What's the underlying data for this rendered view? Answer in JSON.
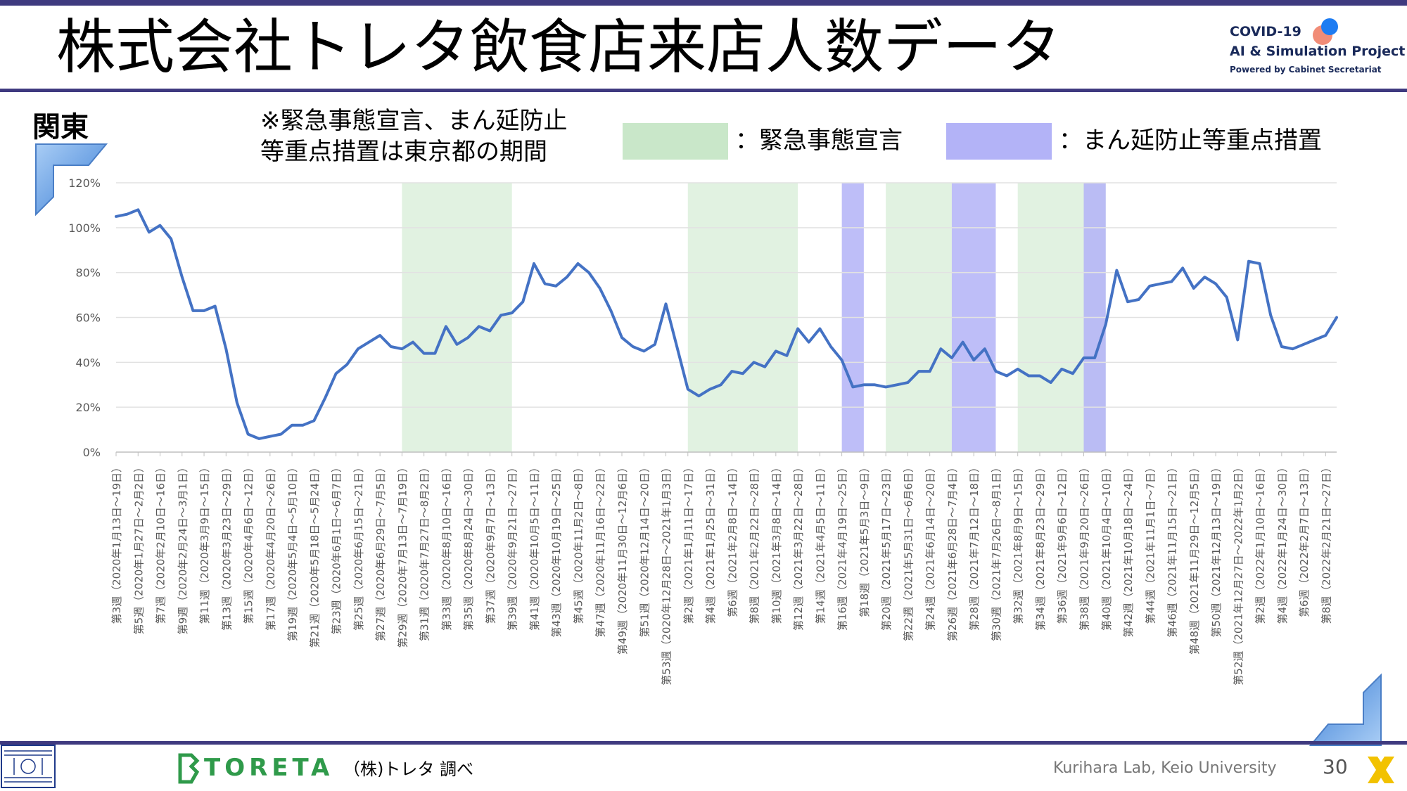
{
  "title": "株式会社トレタ飲食店来店人数データ",
  "logo": {
    "line1": "COVID-19",
    "line2": "AI & Simulation Project",
    "line3": "Powered by Cabinet Secretariat"
  },
  "region": "関東",
  "note_line1": "※緊急事態宣言、まん延防止",
  "note_line2": "等重点措置は東京都の期間",
  "legend": {
    "emergency_label": "：緊急事態宣言",
    "emergency_color": "#c9e7c9",
    "priority_label": "：まん延防止等重点措置",
    "priority_color": "#b3b3f7"
  },
  "footer": {
    "brand": "TORETA",
    "source": "（株)トレタ 調べ",
    "lab": "Kurihara Lab, Keio University",
    "page": "30"
  },
  "chart_data": {
    "type": "line",
    "series_color": "#4472c4",
    "ylim": [
      0,
      1.2
    ],
    "yticks": [
      "0%",
      "20%",
      "40%",
      "60%",
      "80%",
      "100%",
      "120%"
    ],
    "x_labels": [
      "第3週（2020年1月13日～19日）",
      "第5週（2020年1月27日～2月2日）",
      "第7週（2020年2月10日～16日）",
      "第9週（2020年2月24日～3月1日）",
      "第11週（2020年3月9日～15日）",
      "第13週（2020年3月23日～29日）",
      "第15週（2020年4月6日～12日）",
      "第17週（2020年4月20日～26日）",
      "第19週（2020年5月4日～5月10日）",
      "第21週（2020年5月18日～5月24日）",
      "第23週（2020年6月1日～6月7日）",
      "第25週（2020年6月15日～21日）",
      "第27週（2020年6月29日～7月5日）",
      "第29週（2020年7月13日～7月19日）",
      "第31週（2020年7月27日～8月2日）",
      "第33週（2020年8月10日～16日）",
      "第35週（2020年8月24日～30日）",
      "第37週（2020年9月7日～13日）",
      "第39週（2020年9月21日～27日）",
      "第41週（2020年10月5日～11日）",
      "第43週（2020年10月19日～25日）",
      "第45週（2020年11月2日～8日）",
      "第47週（2020年11月16日～22日）",
      "第49週（2020年11月30日～12月6日）",
      "第51週（2020年12月14日～20日）",
      "第53週（2020年12月28日～2021年1月3日）",
      "第2週（2021年1月11日～17日）",
      "第4週（2021年1月25日～31日）",
      "第6週（2021年2月8日～14日）",
      "第8週（2021年2月22日～28日）",
      "第10週（2021年3月8日～14日）",
      "第12週（2021年3月22日～28日）",
      "第14週（2021年4月5日～11日）",
      "第16週（2021年4月19日～25日）",
      "第18週（2021年5月3日～9日）",
      "第20週（2021年5月17日～23日）",
      "第22週（2021年5月31日～6月6日）",
      "第24週（2021年6月14日～20日）",
      "第26週（2021年6月28日～7月4日）",
      "第28週（2021年7月12日～18日）",
      "第30週（2021年7月26日～8月1日）",
      "第32週（2021年8月9日～15日）",
      "第34週（2021年8月23日～29日）",
      "第36週（2021年9月6日～12日）",
      "第38週（2021年9月20日～26日）",
      "第40週（2021年10月4日～10日）",
      "第42週（2021年10月18日～24日）",
      "第44週（2021年11月1日～7日）",
      "第46週（2021年11月15日～21日）",
      "第48週（2021年11月29日～12月5日）",
      "第50週（2021年12月13日～19日）",
      "第52週（2021年12月27日～2022年1月2日）",
      "第2週（2022年1月10日～16日）",
      "第4週（2022年1月24日～30日）",
      "第6週（2022年2月7日～13日）",
      "第8週（2022年2月21日～27日）"
    ],
    "values": [
      1.05,
      1.06,
      1.08,
      0.98,
      1.01,
      0.95,
      0.78,
      0.63,
      0.63,
      0.65,
      0.46,
      0.22,
      0.08,
      0.06,
      0.07,
      0.08,
      0.12,
      0.12,
      0.14,
      0.24,
      0.35,
      0.39,
      0.46,
      0.49,
      0.52,
      0.47,
      0.46,
      0.49,
      0.44,
      0.44,
      0.56,
      0.48,
      0.51,
      0.56,
      0.54,
      0.61,
      0.62,
      0.67,
      0.84,
      0.75,
      0.74,
      0.78,
      0.84,
      0.8,
      0.73,
      0.63,
      0.51,
      0.47,
      0.45,
      0.48,
      0.66,
      0.47,
      0.28,
      0.25,
      0.28,
      0.3,
      0.36,
      0.35,
      0.4,
      0.38,
      0.45,
      0.43,
      0.55,
      0.49,
      0.55,
      0.47,
      0.41,
      0.29,
      0.3,
      0.3,
      0.29,
      0.3,
      0.31,
      0.36,
      0.36,
      0.46,
      0.42,
      0.49,
      0.41,
      0.46,
      0.36,
      0.34,
      0.37,
      0.34,
      0.34,
      0.31,
      0.37,
      0.35,
      0.42,
      0.42,
      0.57,
      0.81,
      0.67,
      0.68,
      0.74,
      0.75,
      0.76,
      0.82,
      0.73,
      0.78,
      0.75,
      0.69,
      0.5,
      0.85,
      0.84,
      0.61,
      0.47,
      0.46,
      0.48,
      0.5,
      0.52,
      0.6
    ],
    "emergency_periods": [
      [
        13,
        18
      ],
      [
        26,
        31
      ],
      [
        35,
        38
      ],
      [
        41,
        45
      ]
    ],
    "priority_periods": [
      [
        33,
        34
      ],
      [
        38,
        40
      ],
      [
        44,
        45
      ]
    ]
  }
}
